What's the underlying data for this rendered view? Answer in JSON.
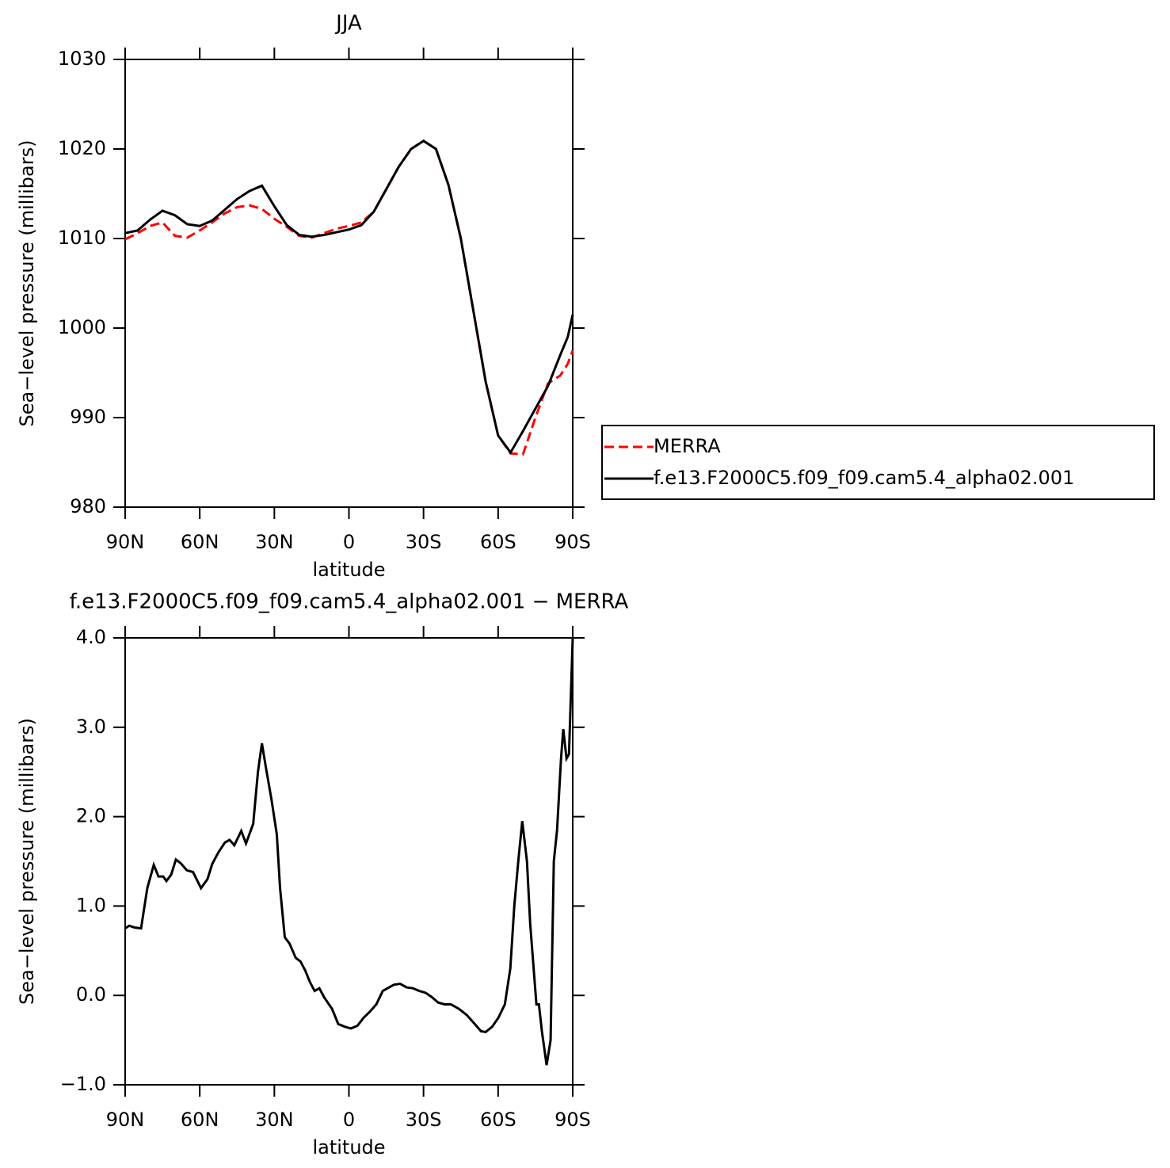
{
  "chart_data": [
    {
      "type": "line",
      "title": "JJA",
      "xlabel": "latitude",
      "ylabel": "Sea−level pressure (millibars)",
      "xlim": [
        90,
        -90
      ],
      "xticks": [
        {
          "value": 90,
          "label": "90N"
        },
        {
          "value": 60,
          "label": "60N"
        },
        {
          "value": 30,
          "label": "30N"
        },
        0,
        {
          "value": -30,
          "label": "30S"
        },
        {
          "value": -60,
          "label": "60S"
        },
        {
          "value": -90,
          "label": "90S"
        }
      ],
      "ylim": [
        980,
        1030
      ],
      "yticks": [
        980,
        990,
        1000,
        1010,
        1020,
        1030
      ],
      "legend": "right",
      "x": [
        90,
        85,
        80,
        75,
        70,
        65,
        60,
        55,
        50,
        45,
        40,
        35,
        30,
        25,
        20,
        15,
        10,
        5,
        0,
        -5,
        -10,
        -15,
        -20,
        -25,
        -30,
        -35,
        -40,
        -45,
        -50,
        -55,
        -60,
        -65,
        -70,
        -75,
        -80,
        -85,
        -88,
        -90
      ],
      "series": [
        {
          "name": "MERRA",
          "color": "#ff0000",
          "line_style": "dashed",
          "values": [
            1009.9,
            1010.6,
            1011.4,
            1011.8,
            1010.3,
            1010.1,
            1010.9,
            1011.8,
            1012.8,
            1013.5,
            1013.7,
            1013.3,
            1012.2,
            1011.3,
            1010.3,
            1010.1,
            1010.6,
            1011.1,
            1011.4,
            1011.8,
            1013,
            1015.5,
            1018,
            1020,
            1020.9,
            1020,
            1016,
            1010,
            1002,
            994,
            988,
            986,
            985.9,
            990,
            993.8,
            994.7,
            996,
            997.5
          ]
        },
        {
          "name": "f.e13.F2000C5.f09_f09.cam5.4_alpha02.001",
          "color": "#000000",
          "line_style": "solid",
          "values": [
            1010.6,
            1010.9,
            1012.1,
            1013.1,
            1012.6,
            1011.6,
            1011.4,
            1012,
            1013.2,
            1014.4,
            1015.3,
            1015.9,
            1013.6,
            1011.5,
            1010.4,
            1010.2,
            1010.4,
            1010.7,
            1011,
            1011.5,
            1013,
            1015.5,
            1018,
            1020,
            1020.9,
            1020,
            1016,
            1010,
            1002,
            994,
            988,
            986.1,
            988.5,
            991,
            993.5,
            997,
            999,
            1001.5
          ]
        }
      ]
    },
    {
      "type": "line",
      "title": "f.e13.F2000C5.f09_f09.cam5.4_alpha02.001 − MERRA",
      "xlabel": "latitude",
      "ylabel": "Sea−level pressure (millibars)",
      "xlim": [
        90,
        -90
      ],
      "xticks": [
        {
          "value": 90,
          "label": "90N"
        },
        {
          "value": 60,
          "label": "60N"
        },
        {
          "value": 30,
          "label": "30N"
        },
        0,
        {
          "value": -30,
          "label": "30S"
        },
        {
          "value": -60,
          "label": "60S"
        },
        {
          "value": -90,
          "label": "90S"
        }
      ],
      "ylim": [
        -1,
        4
      ],
      "yticks": [
        {
          "value": -1,
          "label": "−1.0"
        },
        {
          "value": 0,
          "label": "0.0"
        },
        {
          "value": 1,
          "label": "1.0"
        },
        {
          "value": 2,
          "label": "2.0"
        },
        {
          "value": 3,
          "label": "3.0"
        },
        {
          "value": 4,
          "label": "4.0"
        }
      ],
      "x": [
        90,
        88.4,
        86.2,
        83.6,
        81.1,
        78.5,
        76.6,
        74.7,
        73.4,
        71.5,
        69.6,
        67.7,
        65.2,
        62.7,
        59.5,
        56.9,
        55,
        52.5,
        49.9,
        48,
        46.1,
        43.3,
        41.4,
        38.5,
        36.6,
        35,
        33.4,
        31.2,
        29,
        27.7,
        25.8,
        23.9,
        21.4,
        19.5,
        17.6,
        15.7,
        13.8,
        11.9,
        10,
        6.8,
        4.3,
        1.7,
        -0.8,
        -3.4,
        -5.9,
        -8.5,
        -11,
        -13.6,
        -15.5,
        -18.1,
        -20.6,
        -23.2,
        -25.7,
        -28.3,
        -30.8,
        -33.4,
        -35.9,
        -38.5,
        -41,
        -44.2,
        -47.4,
        -50.6,
        -53.1,
        -55,
        -57.6,
        -60.1,
        -62.7,
        -64.9,
        -66.5,
        -68.1,
        -69.7,
        -71.6,
        -72.9,
        -75.4,
        -76.4,
        -77.6,
        -79.5,
        -81.1,
        -82.4,
        -83.7,
        -85.3,
        -86.2,
        -87.5,
        -88.5,
        -90
      ],
      "series": [
        {
          "color": "#000000",
          "line_style": "solid",
          "values": [
            0.75,
            0.78,
            0.76,
            0.75,
            1.2,
            1.46,
            1.33,
            1.33,
            1.28,
            1.35,
            1.52,
            1.48,
            1.4,
            1.38,
            1.2,
            1.3,
            1.47,
            1.6,
            1.71,
            1.74,
            1.68,
            1.84,
            1.7,
            1.92,
            2.5,
            2.82,
            2.55,
            2.2,
            1.8,
            1.2,
            0.65,
            0.58,
            0.42,
            0.38,
            0.28,
            0.15,
            0.05,
            0.08,
            -0.02,
            -0.15,
            -0.32,
            -0.35,
            -0.37,
            -0.34,
            -0.25,
            -0.18,
            -0.1,
            0.05,
            0.08,
            0.12,
            0.13,
            0.09,
            0.08,
            0.05,
            0.03,
            -0.02,
            -0.08,
            -0.1,
            -0.1,
            -0.15,
            -0.22,
            -0.32,
            -0.4,
            -0.41,
            -0.35,
            -0.25,
            -0.1,
            0.3,
            1,
            1.5,
            1.95,
            1.5,
            0.8,
            -0.1,
            -0.1,
            -0.4,
            -0.78,
            -0.5,
            1.5,
            1.85,
            2.65,
            2.98,
            2.65,
            2.7,
            4
          ]
        }
      ]
    }
  ]
}
